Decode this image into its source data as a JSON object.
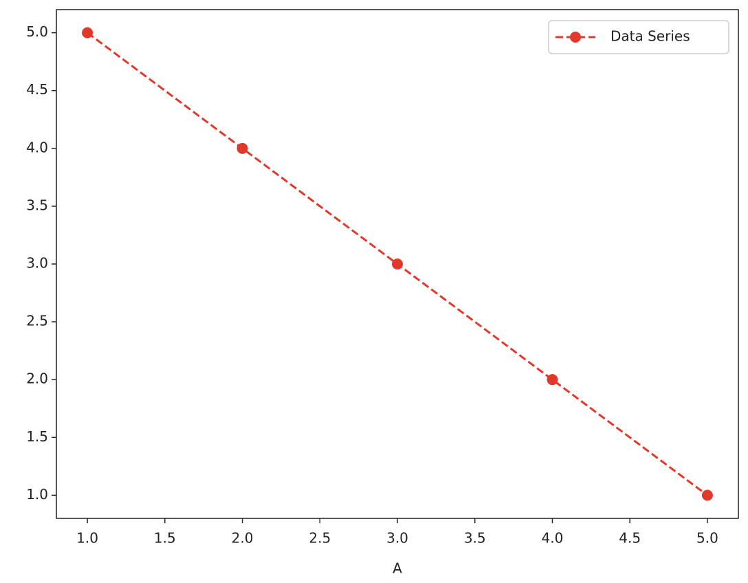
{
  "chart_data": {
    "type": "line",
    "xlabel": "A",
    "x": [
      1,
      2,
      3,
      4,
      5
    ],
    "series": [
      {
        "name": "Data Series",
        "color": "#e0392b",
        "values": [
          5,
          4,
          3,
          2,
          1
        ]
      }
    ],
    "xlim": [
      0.8,
      5.2
    ],
    "xticks": [
      {
        "value": 1,
        "label": "1.0"
      },
      {
        "value": 1.5,
        "label": "1.5"
      },
      {
        "value": 2,
        "label": "2.0"
      },
      {
        "value": 2.5,
        "label": "2.5"
      },
      {
        "value": 3,
        "label": "3.0"
      },
      {
        "value": 3.5,
        "label": "3.5"
      },
      {
        "value": 4,
        "label": "4.0"
      },
      {
        "value": 4.5,
        "label": "4.5"
      },
      {
        "value": 5,
        "label": "5.0"
      }
    ],
    "ylim": [
      0.8,
      5.2
    ],
    "yticks": [
      {
        "value": 1,
        "label": "1.0"
      },
      {
        "value": 1.5,
        "label": "1.5"
      },
      {
        "value": 2,
        "label": "2.0"
      },
      {
        "value": 2.5,
        "label": "2.5"
      },
      {
        "value": 3,
        "label": "3.0"
      },
      {
        "value": 3.5,
        "label": "3.5"
      },
      {
        "value": 4,
        "label": "4.0"
      },
      {
        "value": 4.5,
        "label": "4.5"
      },
      {
        "value": 5,
        "label": "5.0"
      }
    ],
    "line_style": "dashed",
    "marker": "circle",
    "legend": "upper right",
    "grid": false
  }
}
